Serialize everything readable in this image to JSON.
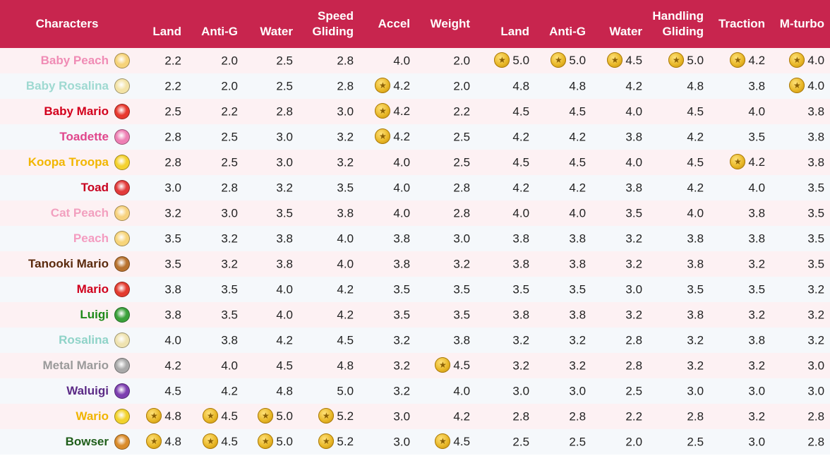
{
  "header": {
    "characters": "Characters",
    "speed": "Speed",
    "handling": "Handling",
    "accel": "Accel",
    "weight": "Weight",
    "traction": "Traction",
    "mturbo": "M-turbo",
    "speed_sub": [
      "Land",
      "Anti-G",
      "Water",
      "Gliding"
    ],
    "handling_sub": [
      "Land",
      "Anti-G",
      "Water",
      "Gliding"
    ]
  },
  "rows": [
    {
      "name": "Baby Peach",
      "color": "#f08cb5",
      "avatar_icon": "baby-peach-icon",
      "avatar_color": "#f6d37a",
      "values": [
        "2.2",
        "2.0",
        "2.5",
        "2.8",
        "4.0",
        "2.0",
        "5.0",
        "5.0",
        "4.5",
        "5.0",
        "4.2",
        "4.0"
      ],
      "coins": [
        false,
        false,
        false,
        false,
        false,
        false,
        true,
        true,
        true,
        true,
        true,
        true
      ]
    },
    {
      "name": "Baby Rosalina",
      "color": "#9ed9d1",
      "avatar_icon": "baby-rosalina-icon",
      "avatar_color": "#f3e3a6",
      "values": [
        "2.2",
        "2.0",
        "2.5",
        "2.8",
        "4.2",
        "2.0",
        "4.8",
        "4.8",
        "4.2",
        "4.8",
        "3.8",
        "4.0"
      ],
      "coins": [
        false,
        false,
        false,
        false,
        true,
        false,
        false,
        false,
        false,
        false,
        false,
        true
      ]
    },
    {
      "name": "Baby Mario",
      "color": "#d3001c",
      "avatar_icon": "baby-mario-icon",
      "avatar_color": "#e8392f",
      "values": [
        "2.5",
        "2.2",
        "2.8",
        "3.0",
        "4.2",
        "2.2",
        "4.5",
        "4.5",
        "4.0",
        "4.5",
        "4.0",
        "3.8"
      ],
      "coins": [
        false,
        false,
        false,
        false,
        true,
        false,
        false,
        false,
        false,
        false,
        false,
        false
      ]
    },
    {
      "name": "Toadette",
      "color": "#e0468c",
      "avatar_icon": "toadette-icon",
      "avatar_color": "#ee7fb4",
      "values": [
        "2.8",
        "2.5",
        "3.0",
        "3.2",
        "4.2",
        "2.5",
        "4.2",
        "4.2",
        "3.8",
        "4.2",
        "3.5",
        "3.8"
      ],
      "coins": [
        false,
        false,
        false,
        false,
        true,
        false,
        false,
        false,
        false,
        false,
        false,
        false
      ]
    },
    {
      "name": "Koopa Troopa",
      "color": "#f2b600",
      "avatar_icon": "koopa-troopa-icon",
      "avatar_color": "#f4d12f",
      "values": [
        "2.8",
        "2.5",
        "3.0",
        "3.2",
        "4.0",
        "2.5",
        "4.5",
        "4.5",
        "4.0",
        "4.5",
        "4.2",
        "3.8"
      ],
      "coins": [
        false,
        false,
        false,
        false,
        false,
        false,
        false,
        false,
        false,
        false,
        true,
        false
      ]
    },
    {
      "name": "Toad",
      "color": "#c8001f",
      "avatar_icon": "toad-icon",
      "avatar_color": "#e23b3b",
      "values": [
        "3.0",
        "2.8",
        "3.2",
        "3.5",
        "4.0",
        "2.8",
        "4.2",
        "4.2",
        "3.8",
        "4.2",
        "4.0",
        "3.5"
      ],
      "coins": [
        false,
        false,
        false,
        false,
        false,
        false,
        false,
        false,
        false,
        false,
        false,
        false
      ]
    },
    {
      "name": "Cat Peach",
      "color": "#f2a0bf",
      "avatar_icon": "cat-peach-icon",
      "avatar_color": "#f7d27e",
      "values": [
        "3.2",
        "3.0",
        "3.5",
        "3.8",
        "4.0",
        "2.8",
        "4.0",
        "4.0",
        "3.5",
        "4.0",
        "3.8",
        "3.5"
      ],
      "coins": [
        false,
        false,
        false,
        false,
        false,
        false,
        false,
        false,
        false,
        false,
        false,
        false
      ]
    },
    {
      "name": "Peach",
      "color": "#f49cc0",
      "avatar_icon": "peach-icon",
      "avatar_color": "#f7d57a",
      "values": [
        "3.5",
        "3.2",
        "3.8",
        "4.0",
        "3.8",
        "3.0",
        "3.8",
        "3.8",
        "3.2",
        "3.8",
        "3.8",
        "3.5"
      ],
      "coins": [
        false,
        false,
        false,
        false,
        false,
        false,
        false,
        false,
        false,
        false,
        false,
        false
      ]
    },
    {
      "name": "Tanooki Mario",
      "color": "#5a2a0d",
      "avatar_icon": "tanooki-mario-icon",
      "avatar_color": "#b8722e",
      "values": [
        "3.5",
        "3.2",
        "3.8",
        "4.0",
        "3.8",
        "3.2",
        "3.8",
        "3.8",
        "3.2",
        "3.8",
        "3.2",
        "3.5"
      ],
      "coins": [
        false,
        false,
        false,
        false,
        false,
        false,
        false,
        false,
        false,
        false,
        false,
        false
      ]
    },
    {
      "name": "Mario",
      "color": "#d0001c",
      "avatar_icon": "mario-icon",
      "avatar_color": "#e33b2e",
      "values": [
        "3.8",
        "3.5",
        "4.0",
        "4.2",
        "3.5",
        "3.5",
        "3.5",
        "3.5",
        "3.0",
        "3.5",
        "3.5",
        "3.2"
      ],
      "coins": [
        false,
        false,
        false,
        false,
        false,
        false,
        false,
        false,
        false,
        false,
        false,
        false
      ]
    },
    {
      "name": "Luigi",
      "color": "#1e8a19",
      "avatar_icon": "luigi-icon",
      "avatar_color": "#3aa13a",
      "values": [
        "3.8",
        "3.5",
        "4.0",
        "4.2",
        "3.5",
        "3.5",
        "3.8",
        "3.8",
        "3.2",
        "3.8",
        "3.2",
        "3.2"
      ],
      "coins": [
        false,
        false,
        false,
        false,
        false,
        false,
        false,
        false,
        false,
        false,
        false,
        false
      ]
    },
    {
      "name": "Rosalina",
      "color": "#8fd3c8",
      "avatar_icon": "rosalina-icon",
      "avatar_color": "#efe3b0",
      "values": [
        "4.0",
        "3.8",
        "4.2",
        "4.5",
        "3.2",
        "3.8",
        "3.2",
        "3.2",
        "2.8",
        "3.2",
        "3.8",
        "3.2"
      ],
      "coins": [
        false,
        false,
        false,
        false,
        false,
        false,
        false,
        false,
        false,
        false,
        false,
        false
      ]
    },
    {
      "name": "Metal Mario",
      "color": "#9a9a9a",
      "avatar_icon": "metal-mario-icon",
      "avatar_color": "#a9a9a9",
      "values": [
        "4.2",
        "4.0",
        "4.5",
        "4.8",
        "3.2",
        "4.5",
        "3.2",
        "3.2",
        "2.8",
        "3.2",
        "3.2",
        "3.0"
      ],
      "coins": [
        false,
        false,
        false,
        false,
        false,
        true,
        false,
        false,
        false,
        false,
        false,
        false
      ]
    },
    {
      "name": "Waluigi",
      "color": "#5b2a86",
      "avatar_icon": "waluigi-icon",
      "avatar_color": "#7d3fb0",
      "values": [
        "4.5",
        "4.2",
        "4.8",
        "5.0",
        "3.2",
        "4.0",
        "3.0",
        "3.0",
        "2.5",
        "3.0",
        "3.0",
        "3.0"
      ],
      "coins": [
        false,
        false,
        false,
        false,
        false,
        false,
        false,
        false,
        false,
        false,
        false,
        false
      ]
    },
    {
      "name": "Wario",
      "color": "#f0b400",
      "avatar_icon": "wario-icon",
      "avatar_color": "#f2d22c",
      "values": [
        "4.8",
        "4.5",
        "5.0",
        "5.2",
        "3.0",
        "4.2",
        "2.8",
        "2.8",
        "2.2",
        "2.8",
        "3.2",
        "2.8"
      ],
      "coins": [
        true,
        true,
        true,
        true,
        false,
        false,
        false,
        false,
        false,
        false,
        false,
        false
      ]
    },
    {
      "name": "Bowser",
      "color": "#1f5e1a",
      "avatar_icon": "bowser-icon",
      "avatar_color": "#d98b2b",
      "values": [
        "4.8",
        "4.5",
        "5.0",
        "5.2",
        "3.0",
        "4.5",
        "2.5",
        "2.5",
        "2.0",
        "2.5",
        "3.0",
        "2.8"
      ],
      "coins": [
        true,
        true,
        true,
        true,
        false,
        true,
        false,
        false,
        false,
        false,
        false,
        false
      ]
    }
  ]
}
